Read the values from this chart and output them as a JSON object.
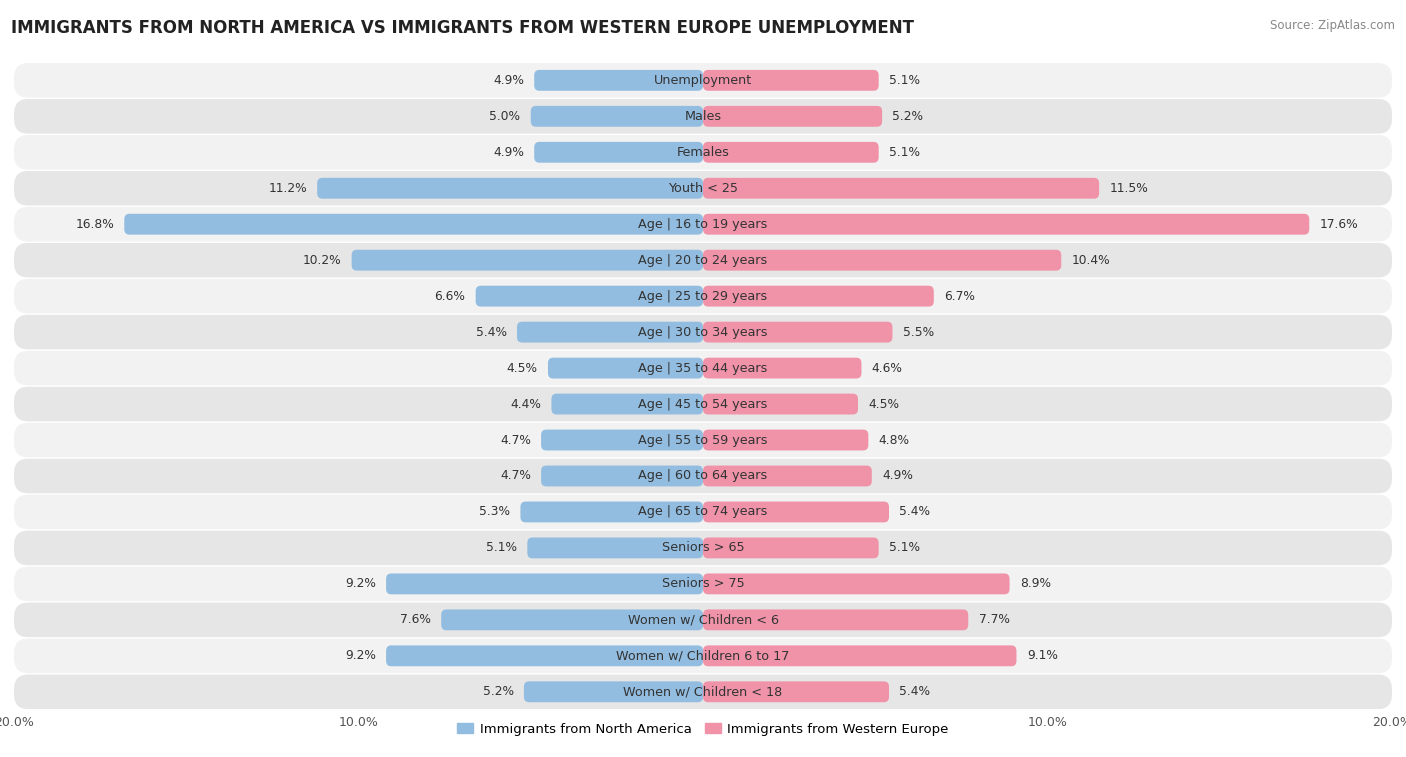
{
  "title": "IMMIGRANTS FROM NORTH AMERICA VS IMMIGRANTS FROM WESTERN EUROPE UNEMPLOYMENT",
  "source": "Source: ZipAtlas.com",
  "categories": [
    "Unemployment",
    "Males",
    "Females",
    "Youth < 25",
    "Age | 16 to 19 years",
    "Age | 20 to 24 years",
    "Age | 25 to 29 years",
    "Age | 30 to 34 years",
    "Age | 35 to 44 years",
    "Age | 45 to 54 years",
    "Age | 55 to 59 years",
    "Age | 60 to 64 years",
    "Age | 65 to 74 years",
    "Seniors > 65",
    "Seniors > 75",
    "Women w/ Children < 6",
    "Women w/ Children 6 to 17",
    "Women w/ Children < 18"
  ],
  "left_values": [
    4.9,
    5.0,
    4.9,
    11.2,
    16.8,
    10.2,
    6.6,
    5.4,
    4.5,
    4.4,
    4.7,
    4.7,
    5.3,
    5.1,
    9.2,
    7.6,
    9.2,
    5.2
  ],
  "right_values": [
    5.1,
    5.2,
    5.1,
    11.5,
    17.6,
    10.4,
    6.7,
    5.5,
    4.6,
    4.5,
    4.8,
    4.9,
    5.4,
    5.1,
    8.9,
    7.7,
    9.1,
    5.4
  ],
  "left_color": "#92bde0",
  "right_color": "#f093a8",
  "left_label": "Immigrants from North America",
  "right_label": "Immigrants from Western Europe",
  "axis_max": 20.0,
  "row_color_even": "#f2f2f2",
  "row_color_odd": "#e6e6e6",
  "bar_height": 0.58,
  "title_fontsize": 12,
  "label_fontsize": 9.2,
  "value_fontsize": 8.8
}
